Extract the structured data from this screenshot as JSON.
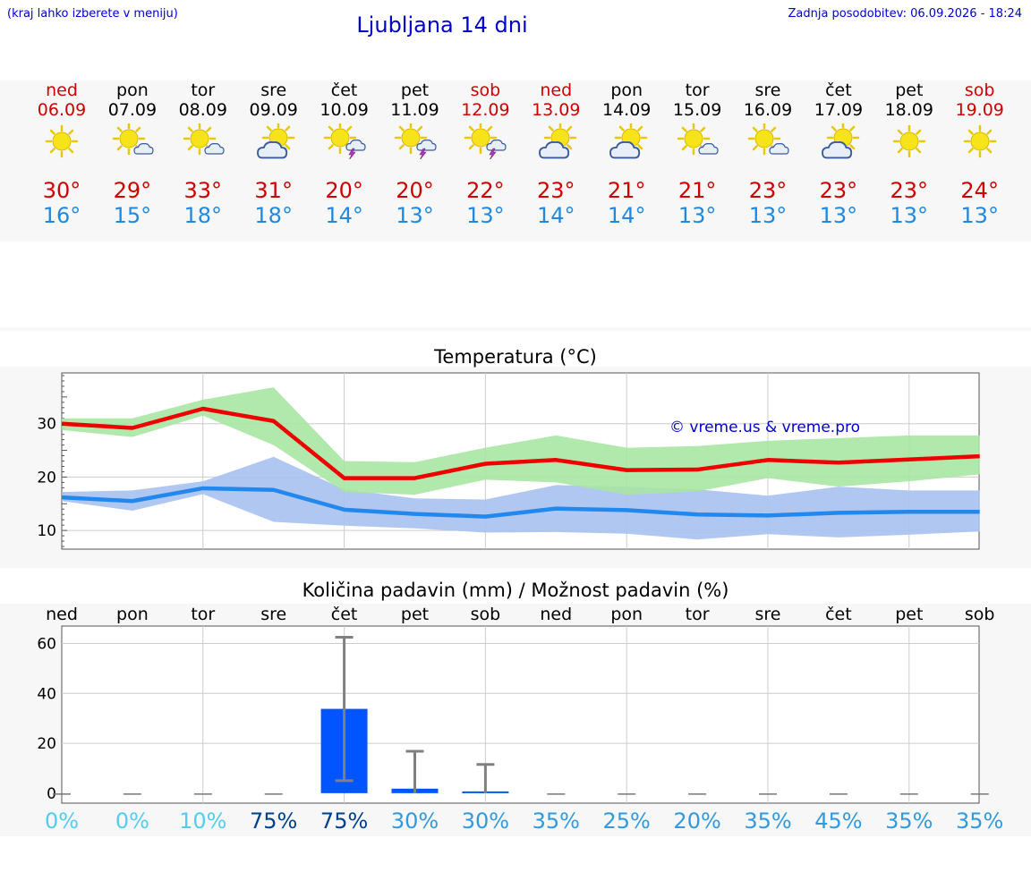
{
  "header": {
    "hint": "(kraj lahko izberete v meniju)",
    "title": "Ljubljana 14 dni",
    "updated": "Zadnja posodobitev: 06.09.2026 - 18:24"
  },
  "days": [
    {
      "name": "ned",
      "date": "06.09",
      "icon": "sun-icon",
      "max": "30°",
      "min": "16°",
      "weekend": true
    },
    {
      "name": "pon",
      "date": "07.09",
      "icon": "sun-cloud-icon",
      "max": "29°",
      "min": "15°",
      "weekend": false
    },
    {
      "name": "tor",
      "date": "08.09",
      "icon": "sun-cloud-icon",
      "max": "33°",
      "min": "18°",
      "weekend": false
    },
    {
      "name": "sre",
      "date": "09.09",
      "icon": "cloud-sun-icon",
      "max": "31°",
      "min": "18°",
      "weekend": false
    },
    {
      "name": "čet",
      "date": "10.09",
      "icon": "sun-storm-icon",
      "max": "20°",
      "min": "14°",
      "weekend": false
    },
    {
      "name": "pet",
      "date": "11.09",
      "icon": "sun-storm-icon",
      "max": "20°",
      "min": "13°",
      "weekend": false
    },
    {
      "name": "sob",
      "date": "12.09",
      "icon": "sun-storm-icon",
      "max": "22°",
      "min": "13°",
      "weekend": true
    },
    {
      "name": "ned",
      "date": "13.09",
      "icon": "cloud-sun-icon",
      "max": "23°",
      "min": "14°",
      "weekend": true
    },
    {
      "name": "pon",
      "date": "14.09",
      "icon": "cloud-sun-icon",
      "max": "21°",
      "min": "14°",
      "weekend": false
    },
    {
      "name": "tor",
      "date": "15.09",
      "icon": "sun-cloud-icon",
      "max": "21°",
      "min": "13°",
      "weekend": false
    },
    {
      "name": "sre",
      "date": "16.09",
      "icon": "sun-cloud-icon",
      "max": "23°",
      "min": "13°",
      "weekend": false
    },
    {
      "name": "čet",
      "date": "17.09",
      "icon": "cloud-sun-icon",
      "max": "23°",
      "min": "13°",
      "weekend": false
    },
    {
      "name": "pet",
      "date": "18.09",
      "icon": "sun-icon",
      "max": "23°",
      "min": "13°",
      "weekend": false
    },
    {
      "name": "sob",
      "date": "19.09",
      "icon": "sun-icon",
      "max": "24°",
      "min": "13°",
      "weekend": true
    }
  ],
  "colors": {
    "max_line": "#ee0000",
    "max_band": "#a8e6a3",
    "min_line": "#2288ee",
    "min_band": "#a7c2f0",
    "bar": "#0055ff",
    "whisker": "#808080",
    "title": "#0000cc",
    "max_text": "#cc0000",
    "min_text": "#2288dd"
  },
  "chart_data": [
    {
      "type": "line",
      "title": "Temperatura (°C)",
      "annotation": "© vreme.us & vreme.pro",
      "x": [
        "06.09",
        "07.09",
        "08.09",
        "09.09",
        "10.09",
        "11.09",
        "12.09",
        "13.09",
        "14.09",
        "15.09",
        "16.09",
        "17.09",
        "18.09",
        "19.09"
      ],
      "ylim": [
        6.5,
        39.5
      ],
      "yticks": [
        10,
        20,
        30
      ],
      "grid": true,
      "series": [
        {
          "role": "max",
          "values": [
            30,
            29.2,
            32.8,
            30.5,
            19.8,
            19.8,
            22.5,
            23.2,
            21.3,
            21.4,
            23.2,
            22.7,
            23.3,
            23.9
          ]
        },
        {
          "role": "max_range",
          "upper": [
            31,
            31,
            34.5,
            36.8,
            23,
            22.8,
            25.5,
            27.8,
            25.5,
            25.8,
            26.8,
            27.3,
            27.8,
            27.8
          ],
          "lower": [
            28.8,
            27.5,
            31.5,
            26,
            17.2,
            16.7,
            19.5,
            19,
            16.7,
            17.3,
            19.8,
            18.2,
            19.2,
            20.5
          ]
        },
        {
          "role": "min",
          "values": [
            16.2,
            15.5,
            17.9,
            17.6,
            13.9,
            13.1,
            12.6,
            14.1,
            13.8,
            13,
            12.8,
            13.3,
            13.5,
            13.5
          ]
        },
        {
          "role": "min_range",
          "upper": [
            17.2,
            17.5,
            19.2,
            23.8,
            17.7,
            16,
            15.8,
            18.5,
            18.2,
            17.7,
            16.5,
            18.2,
            17.5,
            17.5
          ],
          "lower": [
            15.5,
            13.7,
            16.8,
            11.6,
            10.9,
            10.4,
            9.6,
            9.7,
            9.4,
            8.3,
            9.3,
            8.7,
            9.2,
            9.8
          ]
        }
      ]
    },
    {
      "type": "bar",
      "title": "Količina padavin (mm) / Možnost padavin (%)",
      "categories": [
        "ned",
        "pon",
        "tor",
        "sre",
        "čet",
        "pet",
        "sob",
        "ned",
        "pon",
        "tor",
        "sre",
        "čet",
        "pet",
        "sob"
      ],
      "ylim": [
        -4,
        67
      ],
      "yticks": [
        0,
        20,
        40,
        60
      ],
      "values": [
        0,
        0,
        0,
        0,
        33.8,
        1.8,
        0.7,
        0,
        0,
        0,
        0,
        0,
        0,
        0
      ],
      "error_low": [
        0,
        0,
        0,
        0,
        5,
        0,
        0,
        0,
        0,
        0,
        0,
        0,
        0,
        0
      ],
      "error_high": [
        0,
        0,
        0,
        0,
        62.5,
        16.8,
        11.5,
        0,
        0,
        0,
        0,
        0,
        0,
        0
      ],
      "probability": [
        "0%",
        "0%",
        "10%",
        "75%",
        "75%",
        "30%",
        "30%",
        "35%",
        "25%",
        "20%",
        "35%",
        "45%",
        "35%",
        "35%"
      ],
      "probability_colors": [
        "#55ccee",
        "#55ccee",
        "#55ccee",
        "#003f8a",
        "#003f8a",
        "#3399dd",
        "#3399dd",
        "#3399dd",
        "#3399dd",
        "#3399dd",
        "#3399dd",
        "#3399dd",
        "#3399dd",
        "#3399dd"
      ]
    }
  ]
}
